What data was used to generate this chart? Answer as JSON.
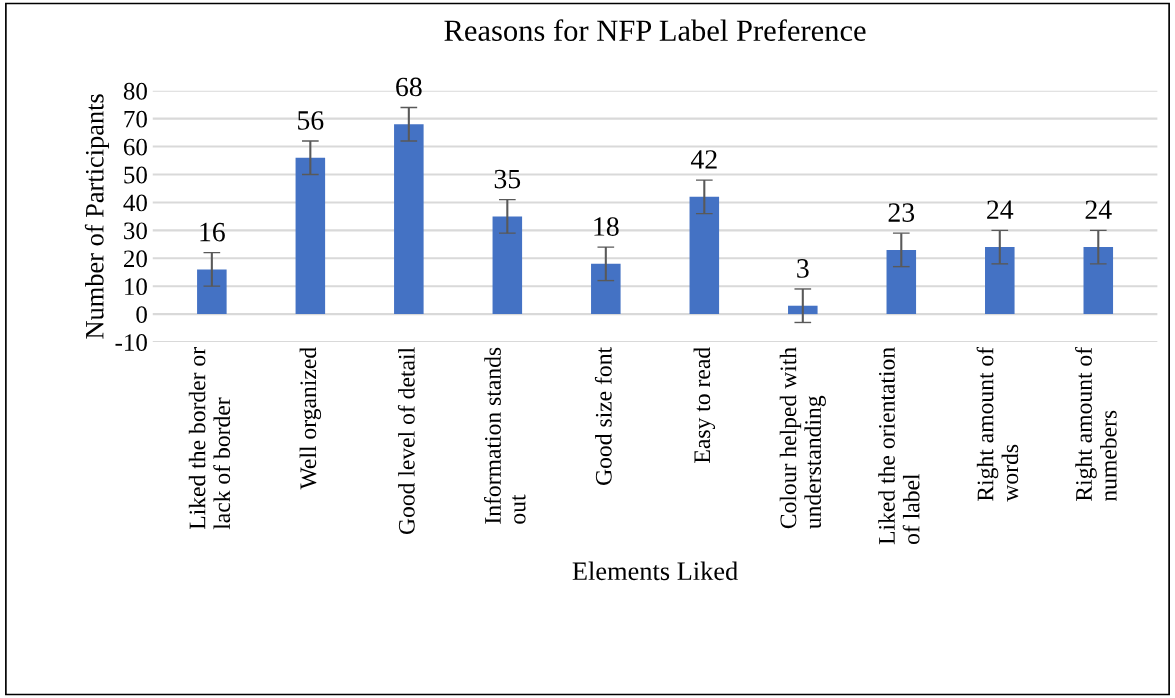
{
  "chart_data": {
    "type": "bar",
    "title": "Reasons for NFP Label Preference",
    "xlabel": "Elements Liked",
    "ylabel": "Number of Participants",
    "categories": [
      "Liked the border or\nlack of border",
      "Well organized",
      "Good level of detail",
      "Information stands\nout",
      "Good size font",
      "Easy to read",
      "Colour helped with\nunderstanding",
      "Liked the orientation\nof label",
      "Right amount of\nwords",
      "Right amount of\nnumebers"
    ],
    "values": [
      16,
      56,
      68,
      35,
      18,
      42,
      3,
      23,
      24,
      24
    ],
    "errors": [
      6,
      6,
      6,
      6,
      6,
      6,
      6,
      6,
      6,
      6
    ],
    "color": "#4472c4",
    "ylim": [
      -10,
      80
    ],
    "yticks": [
      -10,
      0,
      10,
      20,
      30,
      40,
      50,
      60,
      70,
      80
    ],
    "grid": "y",
    "data_labels": true
  }
}
